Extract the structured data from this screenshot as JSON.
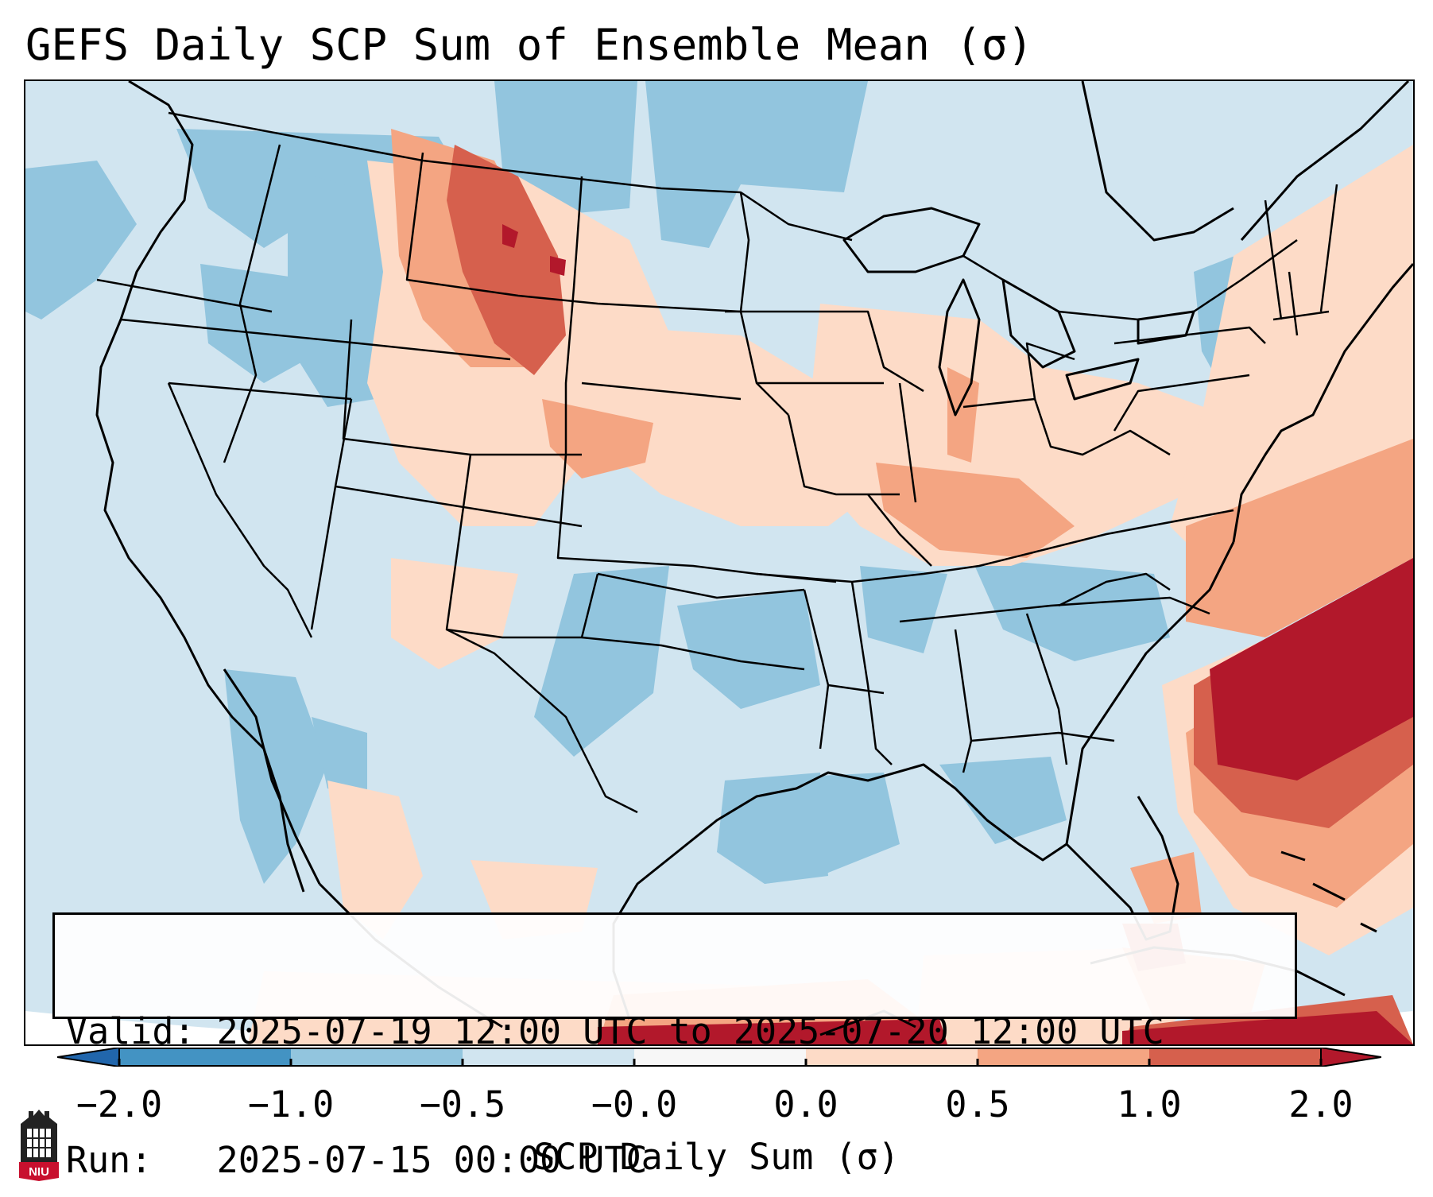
{
  "title": "GEFS Daily SCP Sum of Ensemble Mean (σ)",
  "info": {
    "valid_line": "Valid: 2025-07-19 12:00 UTC to 2025-07-20 12:00 UTC",
    "run_line": "Run:   2025-07-15 00:00 UTC"
  },
  "colorbar": {
    "label": "SCP Daily Sum (σ)",
    "ticks": [
      "−2.0",
      "−1.0",
      "−0.5",
      "−0.0",
      "0.0",
      "0.5",
      "1.0",
      "2.0"
    ],
    "bins": [
      {
        "range": "< -2.0",
        "color": "#2166ac"
      },
      {
        "range": "-2.0 to -1.0",
        "color": "#4393c3"
      },
      {
        "range": "-1.0 to -0.5",
        "color": "#92c5de"
      },
      {
        "range": "-0.5 to -0.0",
        "color": "#d1e5f0"
      },
      {
        "range": "-0.0 to 0.0",
        "color": "#f7f7f7"
      },
      {
        "range": "0.0 to 0.5",
        "color": "#fddbc7"
      },
      {
        "range": "0.5 to 1.0",
        "color": "#f4a582"
      },
      {
        "range": "1.0 to 2.0",
        "color": "#d6604d"
      },
      {
        "range": "> 2.0",
        "color": "#b2182b"
      }
    ]
  },
  "logo": {
    "text": "NIU",
    "icon": "niu-university-logo"
  }
}
